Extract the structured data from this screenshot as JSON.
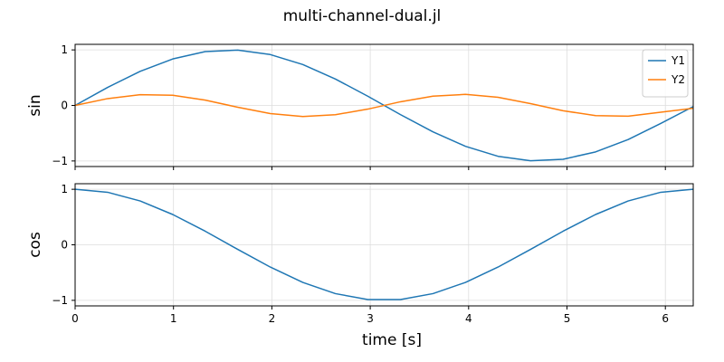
{
  "figure": {
    "title": "multi-channel-dual.jl",
    "xlabel": "time [s]"
  },
  "chart_data": [
    {
      "type": "line",
      "ylabel": "sin",
      "xlim": [
        0,
        6.2832
      ],
      "ylim": [
        -1.1,
        1.1
      ],
      "xticks": [
        0,
        1,
        2,
        3,
        4,
        5,
        6
      ],
      "yticks": [
        -1,
        0,
        1
      ],
      "ytick_labels": [
        "−1",
        "0",
        "1"
      ],
      "show_xtick_labels": false,
      "grid": true,
      "legend": "top-right",
      "series": [
        {
          "name": "Y1",
          "color": "#1f77b4",
          "x": [
            0,
            0.3307,
            0.6614,
            0.992,
            1.3227,
            1.6534,
            1.9841,
            2.3148,
            2.6455,
            2.9762,
            3.3069,
            3.6376,
            3.9683,
            4.2989,
            4.6296,
            4.9603,
            5.291,
            5.6217,
            5.9524,
            6.2832
          ],
          "y": [
            0,
            0.325,
            0.614,
            0.837,
            0.969,
            0.997,
            0.916,
            0.736,
            0.476,
            0.165,
            -0.165,
            -0.476,
            -0.736,
            -0.916,
            -0.997,
            -0.969,
            -0.837,
            -0.614,
            -0.325,
            -0.02
          ]
        },
        {
          "name": "Y2",
          "color": "#ff7f0e",
          "x": [
            0,
            0.3307,
            0.6614,
            0.992,
            1.3227,
            1.6534,
            1.9841,
            2.3148,
            2.6455,
            2.9762,
            3.3069,
            3.6376,
            3.9683,
            4.2989,
            4.6296,
            4.9603,
            5.291,
            5.6217,
            5.9524,
            6.2832
          ],
          "y": [
            0,
            0.123,
            0.194,
            0.183,
            0.096,
            -0.033,
            -0.147,
            -0.199,
            -0.167,
            -0.066,
            0.066,
            0.167,
            0.199,
            0.147,
            0.033,
            -0.096,
            -0.183,
            -0.194,
            -0.123,
            -0.05
          ]
        }
      ]
    },
    {
      "type": "line",
      "ylabel": "cos",
      "xlim": [
        0,
        6.2832
      ],
      "ylim": [
        -1.1,
        1.1
      ],
      "xticks": [
        0,
        1,
        2,
        3,
        4,
        5,
        6
      ],
      "yticks": [
        -1,
        0,
        1
      ],
      "ytick_labels": [
        "−1",
        "0",
        "1"
      ],
      "show_xtick_labels": true,
      "grid": true,
      "series": [
        {
          "color": "#1f77b4",
          "x": [
            0,
            0.3307,
            0.6614,
            0.992,
            1.3227,
            1.6534,
            1.9841,
            2.3148,
            2.6455,
            2.9762,
            3.3069,
            3.6376,
            3.9683,
            4.2989,
            4.6296,
            4.9603,
            5.291,
            5.6217,
            5.9524,
            6.2832
          ],
          "y": [
            1,
            0.946,
            0.789,
            0.546,
            0.245,
            -0.083,
            -0.401,
            -0.677,
            -0.879,
            -0.986,
            -0.986,
            -0.879,
            -0.677,
            -0.401,
            -0.083,
            0.245,
            0.546,
            0.789,
            0.946,
            1
          ]
        }
      ]
    }
  ]
}
